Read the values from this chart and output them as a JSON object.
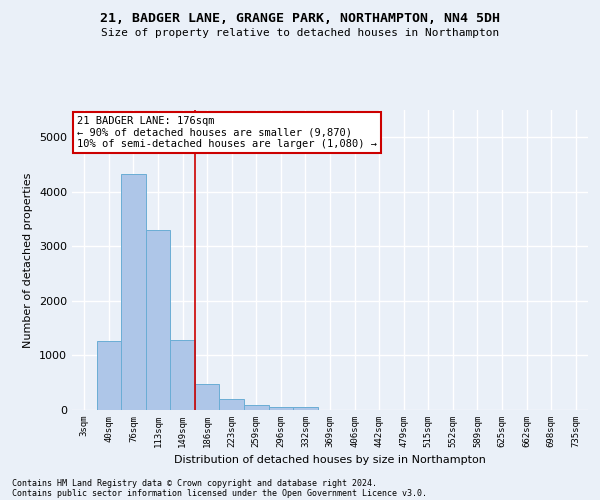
{
  "title1": "21, BADGER LANE, GRANGE PARK, NORTHAMPTON, NN4 5DH",
  "title2": "Size of property relative to detached houses in Northampton",
  "xlabel": "Distribution of detached houses by size in Northampton",
  "ylabel": "Number of detached properties",
  "categories": [
    "3sqm",
    "40sqm",
    "76sqm",
    "113sqm",
    "149sqm",
    "186sqm",
    "223sqm",
    "259sqm",
    "296sqm",
    "332sqm",
    "369sqm",
    "406sqm",
    "442sqm",
    "479sqm",
    "515sqm",
    "552sqm",
    "589sqm",
    "625sqm",
    "662sqm",
    "698sqm",
    "735sqm"
  ],
  "values": [
    0,
    1270,
    4330,
    3300,
    1280,
    480,
    210,
    90,
    60,
    55,
    0,
    0,
    0,
    0,
    0,
    0,
    0,
    0,
    0,
    0,
    0
  ],
  "bar_color": "#aec6e8",
  "bar_edgecolor": "#6aadd5",
  "bg_color": "#eaf0f8",
  "grid_color": "#ffffff",
  "vline_color": "#cc0000",
  "annotation_text": "21 BADGER LANE: 176sqm\n← 90% of detached houses are smaller (9,870)\n10% of semi-detached houses are larger (1,080) →",
  "annotation_box_color": "#ffffff",
  "annotation_border_color": "#cc0000",
  "footnote1": "Contains HM Land Registry data © Crown copyright and database right 2024.",
  "footnote2": "Contains public sector information licensed under the Open Government Licence v3.0.",
  "ylim": [
    0,
    5500
  ],
  "vline_pos": 4.5
}
